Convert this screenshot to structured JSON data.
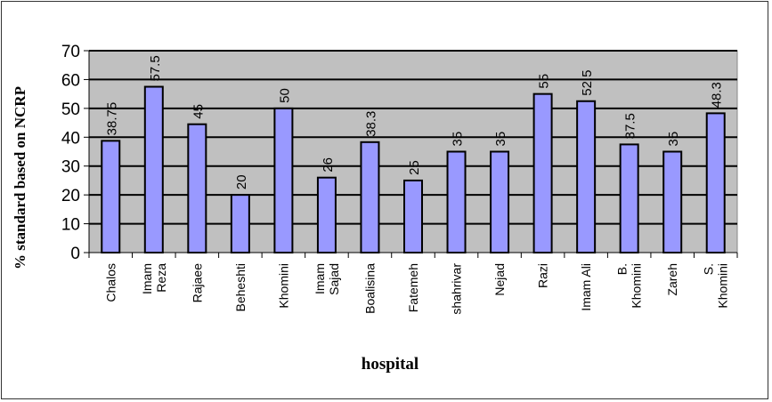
{
  "chart_data": {
    "type": "bar",
    "title": "",
    "xlabel": "hospital",
    "ylabel": "%  standard based on NCRP",
    "ylim": [
      0,
      70
    ],
    "yticks": [
      0,
      10,
      20,
      30,
      40,
      50,
      60,
      70
    ],
    "grid": true,
    "legend": "none",
    "categories": [
      [
        "Chalos"
      ],
      [
        "Imam",
        "Reza"
      ],
      [
        "Rajaee"
      ],
      [
        "Beheshti"
      ],
      [
        "Khomini"
      ],
      [
        "Imam",
        "Sajad"
      ],
      [
        "Boalisina"
      ],
      [
        "Fatemeh"
      ],
      [
        "shahrivar"
      ],
      [
        "Nejad"
      ],
      [
        "Razi"
      ],
      [
        "Imam Ali"
      ],
      [
        "B.",
        "Khomini"
      ],
      [
        "Zareh"
      ],
      [
        "S.",
        "Khomini"
      ]
    ],
    "values": [
      38.75,
      57.5,
      44.5,
      20,
      50,
      26,
      38.3,
      25,
      35,
      35,
      55,
      52.5,
      37.5,
      35,
      48.3
    ],
    "data_labels": [
      "38.75",
      "57.5",
      "45",
      "20",
      "50",
      "26",
      "38.3",
      "25",
      "35",
      "35",
      "55",
      "52.5",
      "37.5",
      "35",
      "48.3"
    ],
    "colors": {
      "bar": "#9999ff",
      "plot_bg": "#c0c0c0",
      "grid": "#000000"
    }
  }
}
